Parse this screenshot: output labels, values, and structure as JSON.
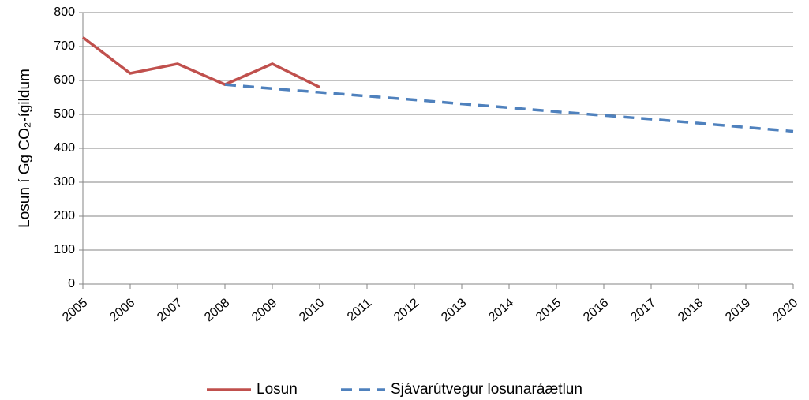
{
  "chart_data": {
    "type": "line",
    "ylabel": "Losun í Gg CO₂-ígildum",
    "x": [
      2005,
      2006,
      2007,
      2008,
      2009,
      2010,
      2011,
      2012,
      2013,
      2014,
      2015,
      2016,
      2017,
      2018,
      2019,
      2020
    ],
    "xlim": [
      2005,
      2020
    ],
    "xticks": [
      2005,
      2006,
      2007,
      2008,
      2009,
      2010,
      2011,
      2012,
      2013,
      2014,
      2015,
      2016,
      2017,
      2018,
      2019,
      2020
    ],
    "ylim": [
      0,
      800
    ],
    "yticks": [
      0,
      100,
      200,
      300,
      400,
      500,
      600,
      700,
      800
    ],
    "grid": true,
    "legend": "bottom",
    "series": [
      {
        "name": "Losun",
        "color": "#c0504d",
        "dashed": false,
        "values": [
          727,
          621,
          649,
          588,
          649,
          580,
          null,
          null,
          null,
          null,
          null,
          null,
          null,
          null,
          null,
          null
        ]
      },
      {
        "name": "Sjávarútvegur losunaráætlun",
        "color": "#4f81bd",
        "dashed": true,
        "values": [
          null,
          null,
          null,
          588,
          576,
          565,
          554,
          543,
          531,
          520,
          508,
          497,
          486,
          474,
          462,
          450
        ]
      }
    ]
  }
}
